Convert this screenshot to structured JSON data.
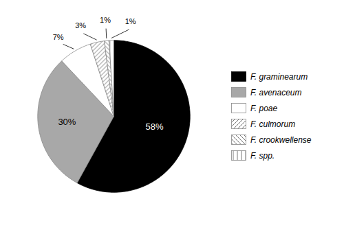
{
  "chart_data": {
    "type": "pie",
    "categories": [
      "F. graminearum",
      "F. avenaceum",
      "F. poae",
      "F. culmorum",
      "F. crookwellense",
      "F. spp."
    ],
    "values": [
      58,
      30,
      7,
      3,
      1,
      1
    ],
    "value_labels": [
      "58%",
      "30%",
      "7%",
      "3%",
      "1%",
      "1%"
    ],
    "colors": [
      "black",
      "#a8a8a8",
      "white",
      "white",
      "white",
      "white"
    ],
    "data_labels": true,
    "legend": "right"
  }
}
